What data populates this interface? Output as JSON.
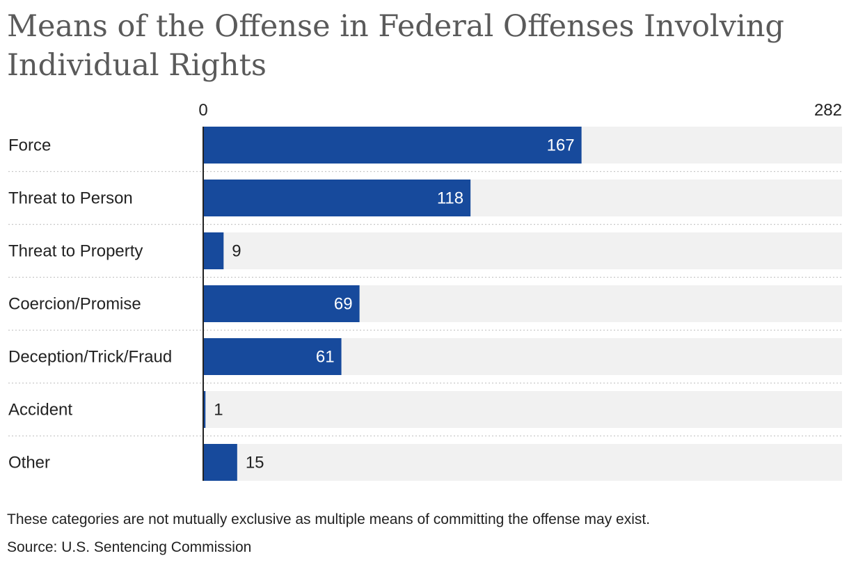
{
  "chart_data": {
    "type": "bar",
    "orientation": "horizontal",
    "title": "Means of the Offense in Federal Offenses Involving Individual Rights",
    "categories": [
      "Force",
      "Threat to Person",
      "Threat to Property",
      "Coercion/Promise",
      "Deception/Trick/Fraud",
      "Accident",
      "Other"
    ],
    "values": [
      167,
      118,
      9,
      69,
      61,
      1,
      15
    ],
    "xlim": [
      0,
      282
    ],
    "axis_ticks": [
      "0",
      "282"
    ],
    "xlabel": "",
    "ylabel": "",
    "grid": false,
    "legend": "none"
  },
  "notes": {
    "caveat": "These categories are not mutually exclusive as multiple means of committing the offense may exist.",
    "source": "Source: U.S. Sentencing Commission"
  },
  "colors": {
    "bar": "#174a9c",
    "track": "#f1f1f1",
    "axis": "#222222",
    "separator": "#c8c8c8",
    "label_inside": "#ffffff",
    "label_outside": "#222222",
    "title": "#5a5a5a"
  }
}
